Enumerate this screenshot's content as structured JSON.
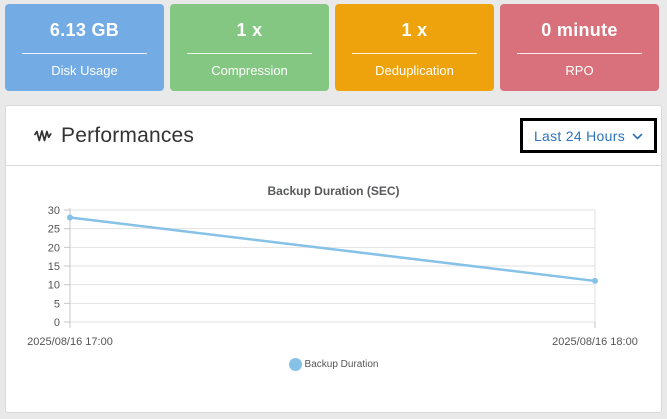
{
  "cards": [
    {
      "value": "6.13 GB",
      "label": "Disk Usage",
      "color": "#73ABE5"
    },
    {
      "value": "1 x",
      "label": "Compression",
      "color": "#84C783"
    },
    {
      "value": "1 x",
      "label": "Deduplication",
      "color": "#EEA30D"
    },
    {
      "value": "0 minute",
      "label": "RPO",
      "color": "#D8717B"
    }
  ],
  "panel": {
    "title": "Performances",
    "icon": "pulse-icon",
    "dropdown": {
      "value": "Last 24 Hours",
      "color": "#2D73BB"
    }
  },
  "chart_data": {
    "type": "line",
    "title": "Backup Duration (SEC)",
    "x": [
      "2025/08/16 17:00",
      "2025/08/16 18:00"
    ],
    "series": [
      {
        "name": "Backup Duration",
        "values": [
          28,
          11
        ],
        "color": "#86C1E8"
      }
    ],
    "ylabel": "",
    "xlabel": "",
    "ylim": [
      0,
      30
    ],
    "yticks": [
      0,
      5,
      10,
      15,
      20,
      25,
      30
    ],
    "grid": "horizontal",
    "legend_position": "bottom"
  }
}
